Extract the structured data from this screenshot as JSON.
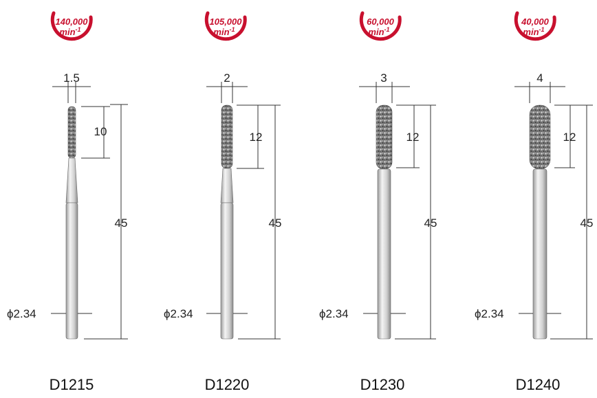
{
  "colors": {
    "badge_red": "#c8102e",
    "abrasive": "#8c8c8c",
    "shank": "#e6e6e6"
  },
  "tools": [
    {
      "code": "D1215",
      "speed": "140,000",
      "speed_unit": "min",
      "speed_exp": "-1",
      "head_diameter": "1.5",
      "head_length": "10",
      "total_length": "45",
      "shank": "ϕ2.34",
      "tapered_neck": true
    },
    {
      "code": "D1220",
      "speed": "105,000",
      "speed_unit": "min",
      "speed_exp": "-1",
      "head_diameter": "2",
      "head_length": "12",
      "total_length": "45",
      "shank": "ϕ2.34",
      "tapered_neck": true
    },
    {
      "code": "D1230",
      "speed": "60,000",
      "speed_unit": "min",
      "speed_exp": "-1",
      "head_diameter": "3",
      "head_length": "12",
      "total_length": "45",
      "shank": "ϕ2.34",
      "tapered_neck": false
    },
    {
      "code": "D1240",
      "speed": "40,000",
      "speed_unit": "min",
      "speed_exp": "-1",
      "head_diameter": "4",
      "head_length": "12",
      "total_length": "45",
      "shank": "ϕ2.34",
      "tapered_neck": false
    }
  ]
}
